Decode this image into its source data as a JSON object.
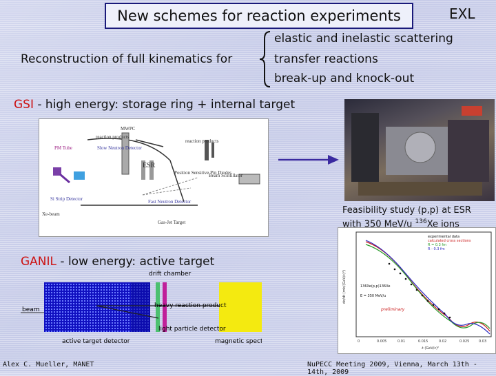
{
  "title": "New schemes for reaction experiments",
  "exl": "EXL",
  "recon_label": "Reconstruction of full kinematics for",
  "topics": [
    "elastic and inelastic scattering",
    "transfer reactions",
    "break-up and knock-out"
  ],
  "gsi": {
    "name": "GSI",
    "rest": " - high energy: storage ring + internal target"
  },
  "ganil": {
    "name": "GANIL",
    "rest": " - low energy: active target"
  },
  "feasibility": {
    "line1": "Feasibility study (p,p) at ESR",
    "line2_pre": "with 350 MeV/u ",
    "sup": "136",
    "line2_post": "Xe ions"
  },
  "gsi_diagram": {
    "labels": [
      "reaction products",
      "Slow Neutron Detector",
      "PM Tube",
      "ESR",
      "reaction products",
      "Position Sensitive Pin Diodes",
      "Beam Scintillator",
      "Si Strip Detector",
      "Fast Neutron Detector",
      "Gas-Jet Target",
      "Xe-beam",
      "MWPC"
    ]
  },
  "ganil_diagram": {
    "labels": [
      "drift chamber",
      "beam",
      "heavy reaction product",
      "light particle detector",
      "active target detector",
      "magnetic spectrom"
    ]
  },
  "plot": {
    "legend": [
      "experimental data",
      "calculated cross sections",
      "R = 0.3 fm",
      "R - 0.3 fm"
    ],
    "reaction": "136Xe(p,p)136Xe",
    "energy": "E = 350 MeV/u",
    "preliminary": "preliminary",
    "xlabel": "-t (GeV/c)²",
    "ylabel": "dσ/dt (mb/(GeV/c)²)",
    "xticks": [
      "0",
      "0.005",
      "0.01",
      "0.015",
      "0.02",
      "0.025",
      "0.03"
    ]
  },
  "footer": {
    "left": "Alex C. Mueller, MANET",
    "right": "NuPECC Meeting 2009, Vienna, March 13th - 14th, 2009"
  }
}
